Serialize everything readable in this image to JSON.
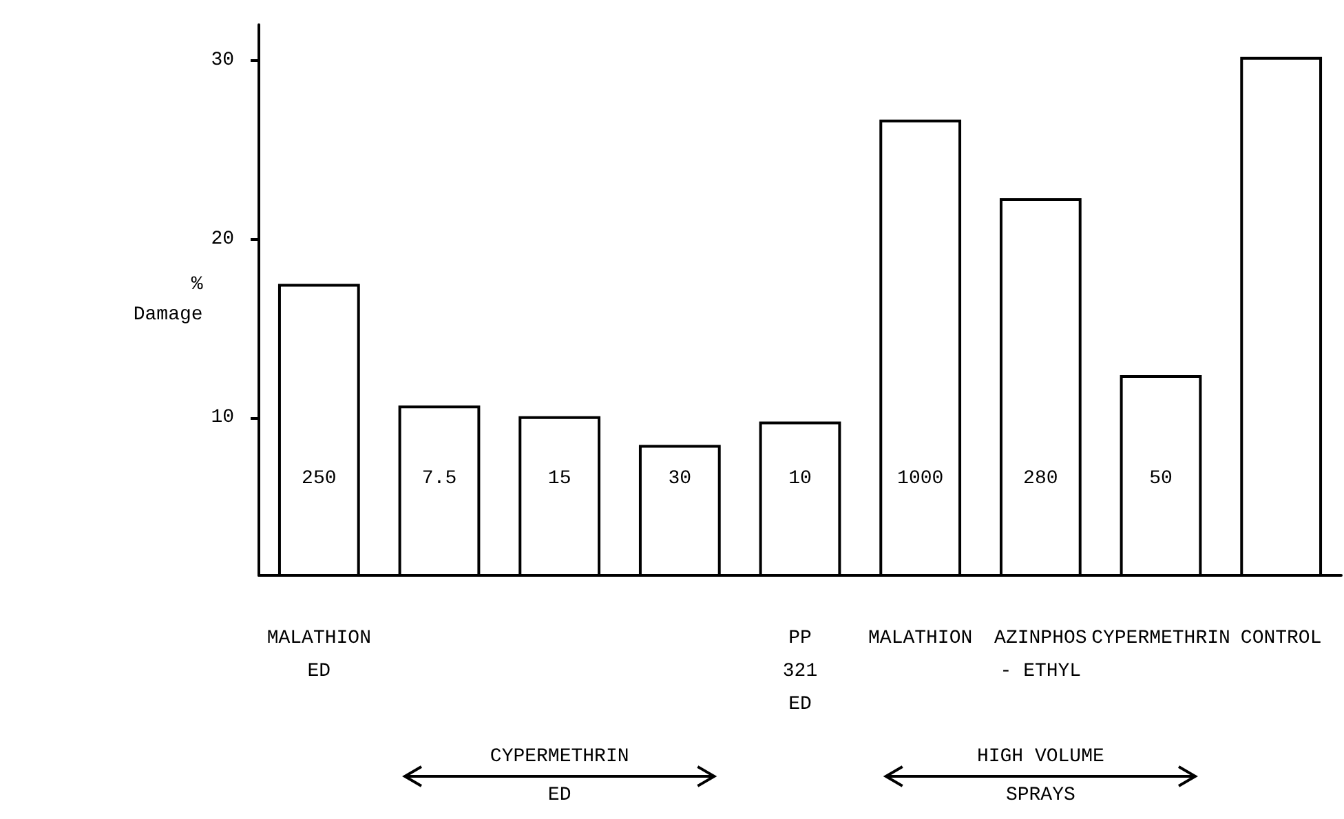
{
  "chart_data": {
    "type": "bar",
    "ylabel": "%\nDamage",
    "categories": [
      "MALATHION\nED",
      null,
      null,
      null,
      "PP\n321\nED",
      "MALATHION",
      "AZINPHOS\n- ETHYL",
      "CYPERMETHRIN",
      "CONTROL"
    ],
    "values": [
      17.5,
      10.7,
      10.1,
      8.5,
      9.8,
      26.7,
      22.3,
      12.4,
      30.2
    ],
    "color": "#ffffff",
    "ylim": [
      1.2,
      32
    ],
    "yticks": [
      10,
      20,
      30
    ],
    "grid": false,
    "annotations": [
      "250",
      "7.5",
      "15",
      "30",
      "10",
      "1000",
      "280",
      "50",
      "CYPERMETHRIN\nED",
      "HIGH VOLUME\nSPRAYS"
    ]
  }
}
